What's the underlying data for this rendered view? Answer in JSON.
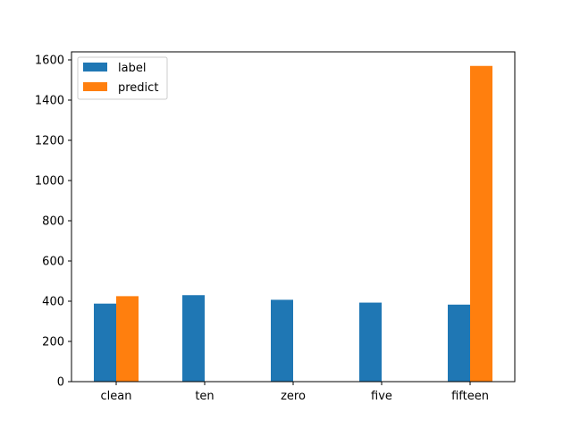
{
  "chart_data": {
    "type": "bar",
    "title": "",
    "xlabel": "",
    "ylabel": "",
    "categories": [
      "clean",
      "ten",
      "zero",
      "five",
      "fifteen"
    ],
    "series": [
      {
        "name": "label",
        "values": [
          388,
          430,
          407,
          393,
          383
        ]
      },
      {
        "name": "predict",
        "values": [
          425,
          0,
          0,
          0,
          1570
        ]
      }
    ],
    "ylim": [
      0,
      1600
    ],
    "yticks": [
      0,
      200,
      400,
      600,
      800,
      1000,
      1200,
      1400,
      1600
    ],
    "grid": false,
    "legend_position": "top-left"
  },
  "colors": {
    "label": "#1f77b4",
    "predict": "#ff7f0e",
    "axis": "#000000",
    "background": "#ffffff"
  }
}
